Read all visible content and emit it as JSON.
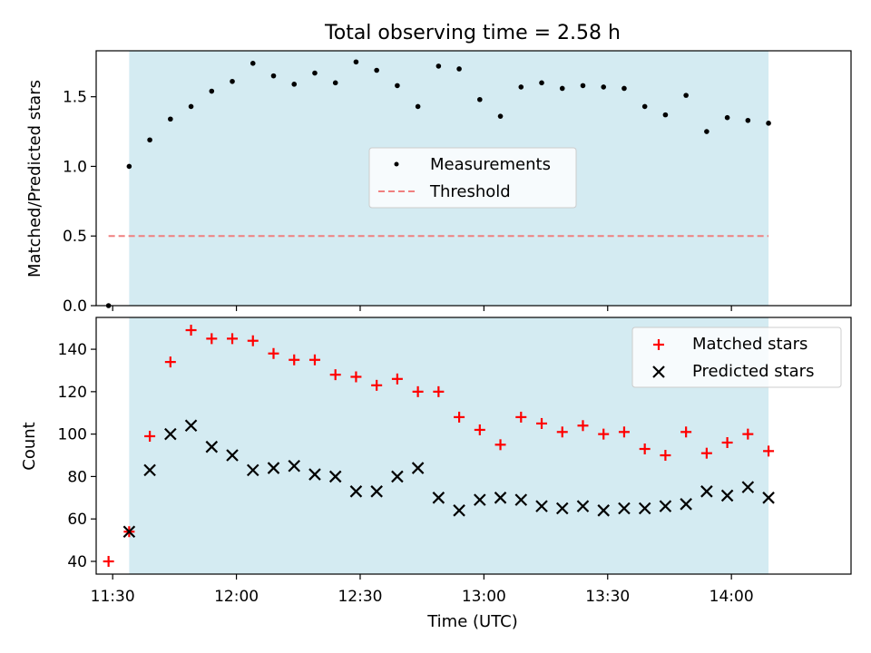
{
  "figure": {
    "title": "Total observing time = 2.58 h",
    "xlabel": "Time (UTC)"
  },
  "chart_data": [
    {
      "type": "scatter",
      "panel": "top",
      "title": "Total observing time = 2.58 h",
      "ylabel": "Matched/Predicted stars",
      "xlim": [
        "11:26",
        "14:29"
      ],
      "ylim": [
        0,
        1.83
      ],
      "yticks": [
        0.0,
        0.5,
        1.0,
        1.5
      ],
      "yticklabels": [
        "0.0",
        "0.5",
        "1.0",
        "1.5"
      ],
      "grid": false,
      "legend": "center",
      "shaded_span": {
        "start": "11:34",
        "end": "14:09",
        "color": "#add8e6"
      },
      "series": [
        {
          "name": "Measurements",
          "kind": "scatter",
          "color": "#000000",
          "x": [
            "11:29",
            "11:34",
            "11:39",
            "11:44",
            "11:49",
            "11:54",
            "11:59",
            "12:04",
            "12:09",
            "12:14",
            "12:19",
            "12:24",
            "12:29",
            "12:34",
            "12:39",
            "12:44",
            "12:49",
            "12:54",
            "12:59",
            "13:04",
            "13:09",
            "13:14",
            "13:19",
            "13:24",
            "13:29",
            "13:34",
            "13:39",
            "13:44",
            "13:49",
            "13:54",
            "13:59",
            "14:04",
            "14:09"
          ],
          "y": [
            0.0,
            1.0,
            1.19,
            1.34,
            1.43,
            1.54,
            1.61,
            1.74,
            1.65,
            1.59,
            1.67,
            1.6,
            1.75,
            1.69,
            1.58,
            1.43,
            1.72,
            1.7,
            1.48,
            1.36,
            1.57,
            1.6,
            1.56,
            1.58,
            1.57,
            1.56,
            1.43,
            1.37,
            1.51,
            1.25,
            1.35,
            1.33,
            1.31
          ]
        },
        {
          "name": "Threshold",
          "kind": "dashed-line",
          "color": "#f08080",
          "x": [
            "11:29",
            "14:09"
          ],
          "y": [
            0.5,
            0.5
          ]
        }
      ]
    },
    {
      "type": "scatter",
      "panel": "bottom",
      "xlabel": "Time (UTC)",
      "ylabel": "Count",
      "xlim": [
        "11:26",
        "14:29"
      ],
      "ylim": [
        34,
        155
      ],
      "yticks": [
        40,
        60,
        80,
        100,
        120,
        140
      ],
      "yticklabels": [
        "40",
        "60",
        "80",
        "100",
        "120",
        "140"
      ],
      "xticks": [
        "11:30",
        "12:00",
        "12:30",
        "13:00",
        "13:30",
        "14:00"
      ],
      "xticklabels": [
        "11:30",
        "12:00",
        "12:30",
        "13:00",
        "13:30",
        "14:00"
      ],
      "grid": false,
      "legend": "upper right",
      "shaded_span": {
        "start": "11:34",
        "end": "14:09",
        "color": "#add8e6"
      },
      "series": [
        {
          "name": "Matched stars",
          "marker": "plus",
          "color": "#ff0000",
          "x": [
            "11:29",
            "11:34",
            "11:39",
            "11:44",
            "11:49",
            "11:54",
            "11:59",
            "12:04",
            "12:09",
            "12:14",
            "12:19",
            "12:24",
            "12:29",
            "12:34",
            "12:39",
            "12:44",
            "12:49",
            "12:54",
            "12:59",
            "13:04",
            "13:09",
            "13:14",
            "13:19",
            "13:24",
            "13:29",
            "13:34",
            "13:39",
            "13:44",
            "13:49",
            "13:54",
            "13:59",
            "14:04",
            "14:09"
          ],
          "y": [
            40,
            54,
            99,
            134,
            149,
            145,
            145,
            144,
            138,
            135,
            135,
            128,
            127,
            123,
            126,
            120,
            120,
            108,
            102,
            95,
            108,
            105,
            101,
            104,
            100,
            101,
            93,
            90,
            101,
            91,
            96,
            100,
            92
          ]
        },
        {
          "name": "Predicted stars",
          "marker": "x",
          "color": "#000000",
          "x": [
            "11:34",
            "11:39",
            "11:44",
            "11:49",
            "11:54",
            "11:59",
            "12:04",
            "12:09",
            "12:14",
            "12:19",
            "12:24",
            "12:29",
            "12:34",
            "12:39",
            "12:44",
            "12:49",
            "12:54",
            "12:59",
            "13:04",
            "13:09",
            "13:14",
            "13:19",
            "13:24",
            "13:29",
            "13:34",
            "13:39",
            "13:44",
            "13:49",
            "13:54",
            "13:59",
            "14:04",
            "14:09"
          ],
          "y": [
            54,
            83,
            100,
            104,
            94,
            90,
            83,
            84,
            85,
            81,
            80,
            73,
            73,
            80,
            84,
            70,
            64,
            69,
            70,
            69,
            66,
            65,
            66,
            64,
            65,
            65,
            66,
            67,
            73,
            71,
            75,
            70
          ]
        }
      ]
    }
  ]
}
